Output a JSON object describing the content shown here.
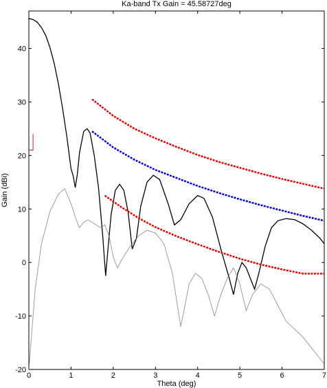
{
  "chart_data": {
    "type": "line",
    "title": "Ka-band Tx Gain = 45.58727deg",
    "xlabel": "Theta (deg)",
    "ylabel": "Gain (dBi)",
    "xlim": [
      0,
      7
    ],
    "ylim": [
      -20,
      47
    ],
    "x_ticks": [
      0,
      1,
      2,
      3,
      4,
      5,
      6,
      7
    ],
    "y_ticks": [
      -20,
      -10,
      0,
      10,
      20,
      30,
      40
    ],
    "grid": false,
    "legend": "none",
    "colors": {
      "pattern": "#000000",
      "pattern_faint": "#6e6e6e",
      "upper_mask": "#dd0000",
      "mid_mask": "#0000cc",
      "lower_mask": "#dd0000"
    },
    "series": [
      {
        "color": "#000000",
        "style": "solid",
        "values": [
          [
            0,
            45.6
          ],
          [
            0.1,
            45.4
          ],
          [
            0.2,
            44.9
          ],
          [
            0.3,
            43.9
          ],
          [
            0.4,
            42.4
          ],
          [
            0.5,
            40.2
          ],
          [
            0.6,
            37.2
          ],
          [
            0.7,
            33.4
          ],
          [
            0.8,
            28.8
          ],
          [
            0.9,
            23.5
          ],
          [
            1.0,
            17.5
          ],
          [
            1.05,
            16.2
          ],
          [
            1.1,
            14.0
          ],
          [
            1.15,
            16.5
          ],
          [
            1.2,
            20.5
          ],
          [
            1.3,
            24.5
          ],
          [
            1.38,
            25.0
          ],
          [
            1.45,
            24.2
          ],
          [
            1.55,
            20.0
          ],
          [
            1.65,
            14.0
          ],
          [
            1.75,
            5.0
          ],
          [
            1.82,
            -2.5
          ],
          [
            1.88,
            3.0
          ],
          [
            1.95,
            9.0
          ],
          [
            2.05,
            13.5
          ],
          [
            2.15,
            14.6
          ],
          [
            2.25,
            13.5
          ],
          [
            2.35,
            9.5
          ],
          [
            2.45,
            2.5
          ],
          [
            2.55,
            4.5
          ],
          [
            2.65,
            10.5
          ],
          [
            2.8,
            15.0
          ],
          [
            2.95,
            16.3
          ],
          [
            3.1,
            15.5
          ],
          [
            3.3,
            11.0
          ],
          [
            3.45,
            7.0
          ],
          [
            3.6,
            8.0
          ],
          [
            3.8,
            11.0
          ],
          [
            4.0,
            12.5
          ],
          [
            4.15,
            12.0
          ],
          [
            4.35,
            8.5
          ],
          [
            4.55,
            2.5
          ],
          [
            4.75,
            -3.0
          ],
          [
            4.85,
            -6.0
          ],
          [
            4.95,
            -2.0
          ],
          [
            5.05,
            0.0
          ],
          [
            5.15,
            -1.0
          ],
          [
            5.25,
            -3.0
          ],
          [
            5.35,
            -5.0
          ],
          [
            5.45,
            -2.0
          ],
          [
            5.6,
            3.0
          ],
          [
            5.75,
            6.5
          ],
          [
            5.9,
            7.8
          ],
          [
            6.1,
            8.2
          ],
          [
            6.3,
            8.0
          ],
          [
            6.5,
            7.2
          ],
          [
            6.7,
            6.0
          ],
          [
            6.9,
            4.5
          ],
          [
            7.0,
            3.5
          ]
        ]
      },
      {
        "color": "#6e6e6e",
        "style": "solid",
        "values": [
          [
            0,
            -20
          ],
          [
            0.05,
            -15
          ],
          [
            0.15,
            -5
          ],
          [
            0.3,
            3.5
          ],
          [
            0.5,
            9.5
          ],
          [
            0.7,
            12.8
          ],
          [
            0.85,
            13.8
          ],
          [
            1.0,
            11.0
          ],
          [
            1.1,
            8.5
          ],
          [
            1.2,
            6.5
          ],
          [
            1.3,
            7.5
          ],
          [
            1.4,
            8.0
          ],
          [
            1.5,
            7.5
          ],
          [
            1.6,
            7.0
          ],
          [
            1.7,
            6.5
          ],
          [
            1.8,
            7.0
          ],
          [
            1.9,
            5.0
          ],
          [
            2.0,
            1.0
          ],
          [
            2.1,
            -1.0
          ],
          [
            2.2,
            0.5
          ],
          [
            2.4,
            3.0
          ],
          [
            2.6,
            5.0
          ],
          [
            2.8,
            6.0
          ],
          [
            3.0,
            5.5
          ],
          [
            3.2,
            3.5
          ],
          [
            3.4,
            -2.0
          ],
          [
            3.6,
            -12.0
          ],
          [
            3.7,
            -8.0
          ],
          [
            3.8,
            -4.0
          ],
          [
            3.95,
            -2.0
          ],
          [
            4.1,
            -3.0
          ],
          [
            4.25,
            -6.0
          ],
          [
            4.4,
            -10.0
          ],
          [
            4.55,
            -6.0
          ],
          [
            4.7,
            -3.0
          ],
          [
            4.85,
            -1.0
          ],
          [
            5.0,
            -4.0
          ],
          [
            5.15,
            -9.0
          ],
          [
            5.3,
            -6.0
          ],
          [
            5.5,
            -4.0
          ],
          [
            5.7,
            -5.0
          ],
          [
            5.9,
            -8.0
          ],
          [
            6.1,
            -11.0
          ],
          [
            6.3,
            -12.5
          ],
          [
            6.5,
            -14.0
          ],
          [
            6.7,
            -16.0
          ],
          [
            6.9,
            -18.0
          ],
          [
            7.0,
            -19.0
          ]
        ]
      },
      {
        "color": "#dd0000",
        "style": "dashed",
        "values": [
          [
            1.5,
            30.5
          ],
          [
            2.0,
            27.4
          ],
          [
            2.5,
            25.0
          ],
          [
            3.0,
            23.2
          ],
          [
            3.5,
            21.6
          ],
          [
            4.0,
            20.1
          ],
          [
            4.5,
            18.8
          ],
          [
            5.0,
            17.7
          ],
          [
            5.5,
            16.6
          ],
          [
            6.0,
            15.6
          ],
          [
            6.5,
            14.7
          ],
          [
            7.0,
            13.8
          ]
        ]
      },
      {
        "color": "#0000cc",
        "style": "dashed",
        "values": [
          [
            1.5,
            24.5
          ],
          [
            2.0,
            21.5
          ],
          [
            2.5,
            19.2
          ],
          [
            3.0,
            17.3
          ],
          [
            3.5,
            15.8
          ],
          [
            4.0,
            14.3
          ],
          [
            4.5,
            13.0
          ],
          [
            5.0,
            11.8
          ],
          [
            5.5,
            10.7
          ],
          [
            6.0,
            9.7
          ],
          [
            6.5,
            8.7
          ],
          [
            7.0,
            7.8
          ]
        ]
      },
      {
        "color": "#dd0000",
        "style": "dashed",
        "values": [
          [
            1.8,
            12.5
          ],
          [
            2.2,
            10.3
          ],
          [
            2.6,
            8.3
          ],
          [
            3.0,
            6.6
          ],
          [
            3.5,
            4.9
          ],
          [
            4.0,
            3.4
          ],
          [
            4.5,
            2.0
          ],
          [
            5.0,
            0.7
          ],
          [
            5.5,
            -0.4
          ],
          [
            6.0,
            -1.3
          ],
          [
            6.5,
            -2.1
          ],
          [
            7.0,
            -2.1
          ]
        ]
      },
      {
        "color": "#dd0000",
        "style": "solid",
        "values": [
          [
            0.0,
            21.0
          ],
          [
            0.1,
            21.0
          ],
          [
            0.1,
            24.0
          ]
        ]
      }
    ]
  }
}
